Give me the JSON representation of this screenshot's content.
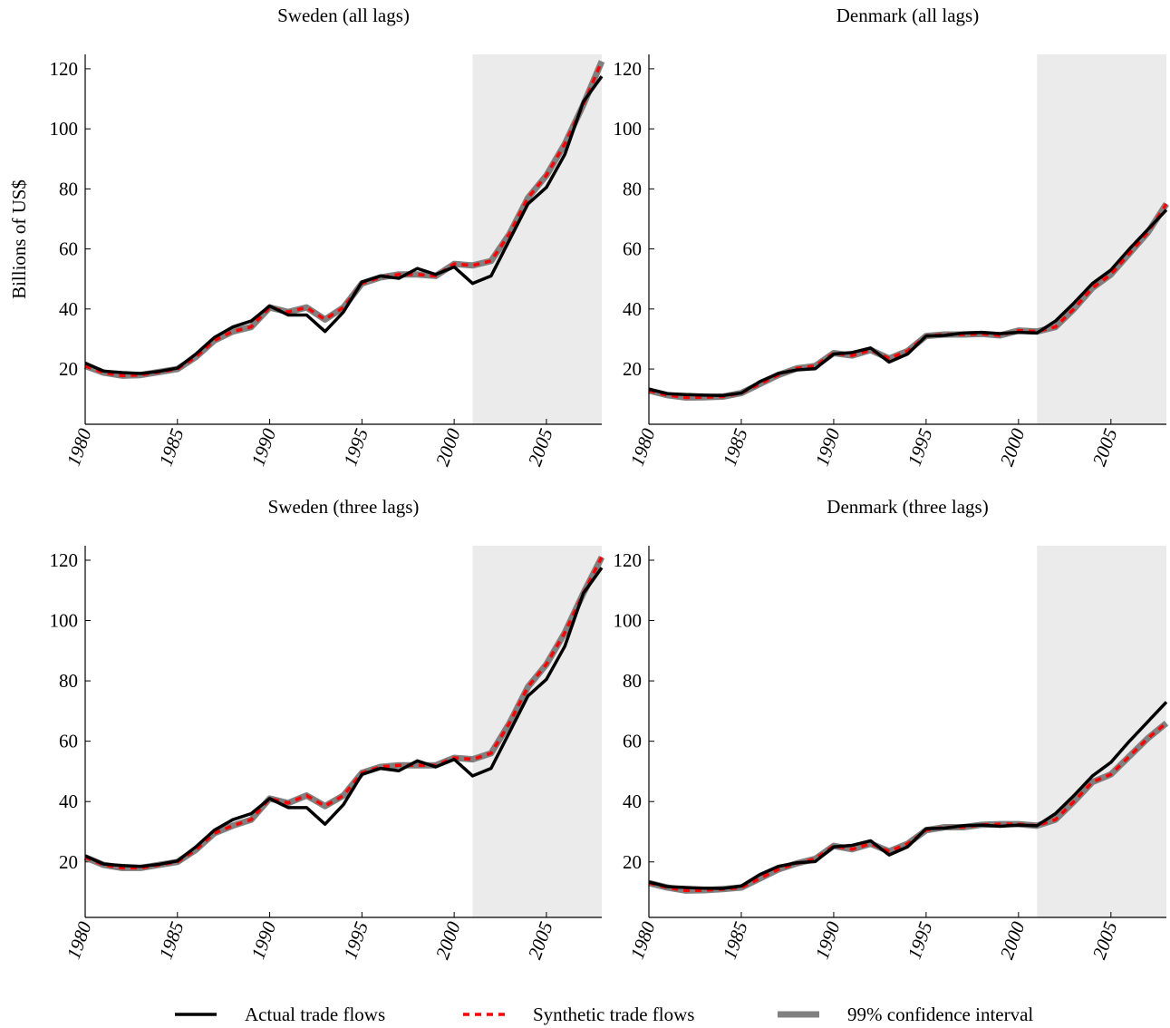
{
  "chart_data": [
    {
      "type": "line",
      "title": "Sweden (all lags)",
      "ylabel": "Billions of US$",
      "x": [
        1980,
        1981,
        1982,
        1983,
        1984,
        1985,
        1986,
        1987,
        1988,
        1989,
        1990,
        1991,
        1992,
        1993,
        1994,
        1995,
        1996,
        1997,
        1998,
        1999,
        2000,
        2001,
        2002,
        2003,
        2004,
        2005,
        2006,
        2007,
        2008
      ],
      "series": [
        {
          "name": "Actual trade flows",
          "color": "#000000",
          "values": [
            22,
            19.3,
            18.8,
            18.5,
            19.2,
            20.3,
            25,
            30.5,
            34,
            36,
            41,
            38,
            38,
            32.5,
            39,
            49,
            51,
            50.2,
            53.5,
            51.5,
            54,
            48.5,
            51,
            63,
            75,
            80.5,
            91.5,
            109,
            117.5
          ]
        },
        {
          "name": "Synthetic trade flows",
          "color": "#ff0000",
          "values": [
            21,
            18.8,
            17.8,
            18,
            19,
            20,
            24,
            29.5,
            32.5,
            34,
            40.5,
            39,
            40.5,
            36.5,
            40.5,
            48.5,
            50.5,
            51.5,
            51.5,
            51,
            55,
            54.5,
            56,
            65,
            77,
            84.5,
            95,
            108,
            122.5
          ]
        },
        {
          "name": "99% confidence interval",
          "color": "#808080",
          "values": [
            21,
            18.8,
            17.8,
            18,
            19,
            20,
            24,
            29.5,
            32.5,
            34,
            40.5,
            39,
            40.5,
            36.5,
            40.5,
            48.5,
            50.5,
            51.5,
            51.5,
            51,
            55,
            54.5,
            56,
            65,
            77,
            84.5,
            95,
            108,
            122.5
          ]
        }
      ],
      "xlim": [
        1980,
        2008
      ],
      "xticks": [
        1980,
        1985,
        1990,
        1995,
        2000,
        2005
      ],
      "ylim": [
        1.6,
        124.8
      ],
      "yticks": [
        20,
        40,
        60,
        80,
        100,
        120
      ],
      "shaded_region": [
        2001,
        2008
      ]
    },
    {
      "type": "line",
      "title": "Denmark (all lags)",
      "x": [
        1980,
        1981,
        1982,
        1983,
        1984,
        1985,
        1986,
        1987,
        1988,
        1989,
        1990,
        1991,
        1992,
        1993,
        1994,
        1995,
        1996,
        1997,
        1998,
        1999,
        2000,
        2001,
        2002,
        2003,
        2004,
        2005,
        2006,
        2007,
        2008
      ],
      "series": [
        {
          "name": "Actual trade flows",
          "color": "#000000",
          "values": [
            13.3,
            11.8,
            11.5,
            11.3,
            11.2,
            12,
            15.8,
            18.5,
            19.7,
            20.1,
            25,
            25.5,
            27,
            22.3,
            25,
            31,
            31.2,
            32,
            32.2,
            31.8,
            32.2,
            32,
            36,
            42,
            48.5,
            53,
            60,
            66.5,
            73
          ]
        },
        {
          "name": "Synthetic trade flows",
          "color": "#ff0000",
          "values": [
            12.8,
            11.3,
            10.5,
            10.6,
            10.8,
            12,
            15,
            18,
            20.2,
            21,
            25.3,
            24.5,
            26.3,
            23.5,
            26,
            31,
            31.5,
            31.5,
            31.7,
            31.2,
            32.8,
            32.5,
            34,
            40,
            47,
            51.5,
            58.5,
            65.5,
            75
          ]
        },
        {
          "name": "99% confidence interval",
          "color": "#808080",
          "values": [
            12.8,
            11.3,
            10.5,
            10.6,
            10.8,
            12,
            15,
            18,
            20.2,
            21,
            25.3,
            24.5,
            26.3,
            23.5,
            26,
            31,
            31.5,
            31.5,
            31.7,
            31.2,
            32.8,
            32.5,
            34,
            40,
            47,
            51.5,
            58.5,
            65.5,
            75
          ]
        }
      ],
      "xlim": [
        1980,
        2008
      ],
      "xticks": [
        1980,
        1985,
        1990,
        1995,
        2000,
        2005
      ],
      "ylim": [
        1.6,
        124.8
      ],
      "yticks": [
        20,
        40,
        60,
        80,
        100,
        120
      ],
      "shaded_region": [
        2001,
        2008
      ]
    },
    {
      "type": "line",
      "title": "Sweden (three lags)",
      "x": [
        1980,
        1981,
        1982,
        1983,
        1984,
        1985,
        1986,
        1987,
        1988,
        1989,
        1990,
        1991,
        1992,
        1993,
        1994,
        1995,
        1996,
        1997,
        1998,
        1999,
        2000,
        2001,
        2002,
        2003,
        2004,
        2005,
        2006,
        2007,
        2008
      ],
      "series": [
        {
          "name": "Actual trade flows",
          "color": "#000000",
          "values": [
            22,
            19.3,
            18.8,
            18.5,
            19.2,
            20.3,
            25,
            30.5,
            34,
            36,
            41,
            38,
            38,
            32.5,
            39,
            49,
            51,
            50.2,
            53.5,
            51.5,
            54,
            48.5,
            51,
            63,
            75,
            80.5,
            91.5,
            109,
            117.5
          ]
        },
        {
          "name": "Synthetic trade flows",
          "color": "#ff0000",
          "values": [
            21.5,
            19,
            18,
            18,
            19,
            20,
            24,
            29.5,
            32,
            34,
            41,
            39.5,
            42,
            38.5,
            42,
            49.5,
            51.5,
            52,
            52,
            52,
            54.5,
            54,
            56,
            66,
            78,
            85.5,
            96,
            109,
            121
          ]
        },
        {
          "name": "99% confidence interval",
          "color": "#808080",
          "values": [
            21.5,
            19,
            18,
            18,
            19,
            20,
            24,
            29.5,
            32,
            34,
            41,
            39.5,
            42,
            38.5,
            42,
            49.5,
            51.5,
            52,
            52,
            52,
            54.5,
            54,
            56,
            66,
            78,
            85.5,
            96,
            109,
            121
          ]
        }
      ],
      "xlim": [
        1980,
        2008
      ],
      "xticks": [
        1980,
        1985,
        1990,
        1995,
        2000,
        2005
      ],
      "ylim": [
        1.6,
        124.8
      ],
      "yticks": [
        20,
        40,
        60,
        80,
        100,
        120
      ],
      "shaded_region": [
        2001,
        2008
      ]
    },
    {
      "type": "line",
      "title": "Denmark (three lags)",
      "x": [
        1980,
        1981,
        1982,
        1983,
        1984,
        1985,
        1986,
        1987,
        1988,
        1989,
        1990,
        1991,
        1992,
        1993,
        1994,
        1995,
        1996,
        1997,
        1998,
        1999,
        2000,
        2001,
        2002,
        2003,
        2004,
        2005,
        2006,
        2007,
        2008
      ],
      "series": [
        {
          "name": "Actual trade flows",
          "color": "#000000",
          "values": [
            13.3,
            11.8,
            11.5,
            11.3,
            11.2,
            12,
            15.8,
            18.5,
            19.7,
            20.1,
            25,
            25.5,
            27,
            22.3,
            25,
            31,
            31.2,
            32,
            32.2,
            31.8,
            32.2,
            32,
            36,
            42,
            48.5,
            53,
            60,
            66.5,
            73
          ]
        },
        {
          "name": "Synthetic trade flows",
          "color": "#ff0000",
          "values": [
            13,
            11.5,
            10.5,
            10.6,
            11,
            11.5,
            14.5,
            17.5,
            19.5,
            21,
            25.3,
            24.2,
            26,
            23.5,
            26,
            30.5,
            31.5,
            31.5,
            32.3,
            32.5,
            32.5,
            32,
            34,
            40,
            46.5,
            49,
            55,
            61,
            66
          ]
        },
        {
          "name": "99% confidence interval",
          "color": "#808080",
          "values": [
            13,
            11.5,
            10.5,
            10.6,
            11,
            11.5,
            14.5,
            17.5,
            19.5,
            21,
            25.3,
            24.2,
            26,
            23.5,
            26,
            30.5,
            31.5,
            31.5,
            32.3,
            32.5,
            32.5,
            32,
            34,
            40,
            46.5,
            49,
            55,
            61,
            66
          ]
        }
      ],
      "xlim": [
        1980,
        2008
      ],
      "xticks": [
        1980,
        1985,
        1990,
        1995,
        2000,
        2005
      ],
      "ylim": [
        1.6,
        124.8
      ],
      "yticks": [
        20,
        40,
        60,
        80,
        100,
        120
      ],
      "shaded_region": [
        2001,
        2008
      ]
    }
  ]
}
